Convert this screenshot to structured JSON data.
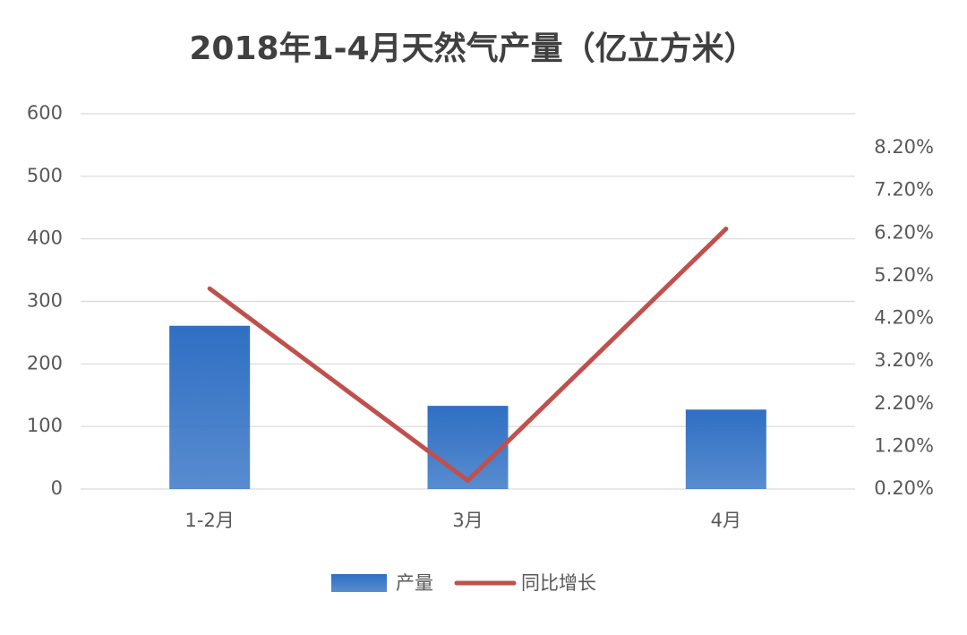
{
  "chart_data": {
    "type": "bar-line",
    "title": "2018年1-4月天然气产量（亿立方米）",
    "categories": [
      "1-2月",
      "3月",
      "4月"
    ],
    "series": [
      {
        "name": "产量",
        "type": "bar",
        "color": "#2f6fc3",
        "values": [
          261,
          133,
          127
        ]
      },
      {
        "name": "同比增长",
        "type": "line",
        "axis": "y2",
        "color": "#c0504d",
        "values": [
          4.9,
          0.4,
          6.3
        ]
      }
    ],
    "ylim": [
      0,
      600
    ],
    "yticks": [
      0,
      100,
      200,
      300,
      400,
      500,
      600
    ],
    "y2lim": [
      0.2,
      9.0
    ],
    "y2ticks": [
      {
        "value": 0.2,
        "label": "0.20%"
      },
      {
        "value": 1.2,
        "label": "1.20%"
      },
      {
        "value": 2.2,
        "label": "2.20%"
      },
      {
        "value": 3.2,
        "label": "3.20%"
      },
      {
        "value": 4.2,
        "label": "4.20%"
      },
      {
        "value": 5.2,
        "label": "5.20%"
      },
      {
        "value": 6.2,
        "label": "6.20%"
      },
      {
        "value": 7.2,
        "label": "7.20%"
      },
      {
        "value": 8.2,
        "label": "8.20%"
      }
    ],
    "grid": true,
    "legend": "bottom"
  }
}
